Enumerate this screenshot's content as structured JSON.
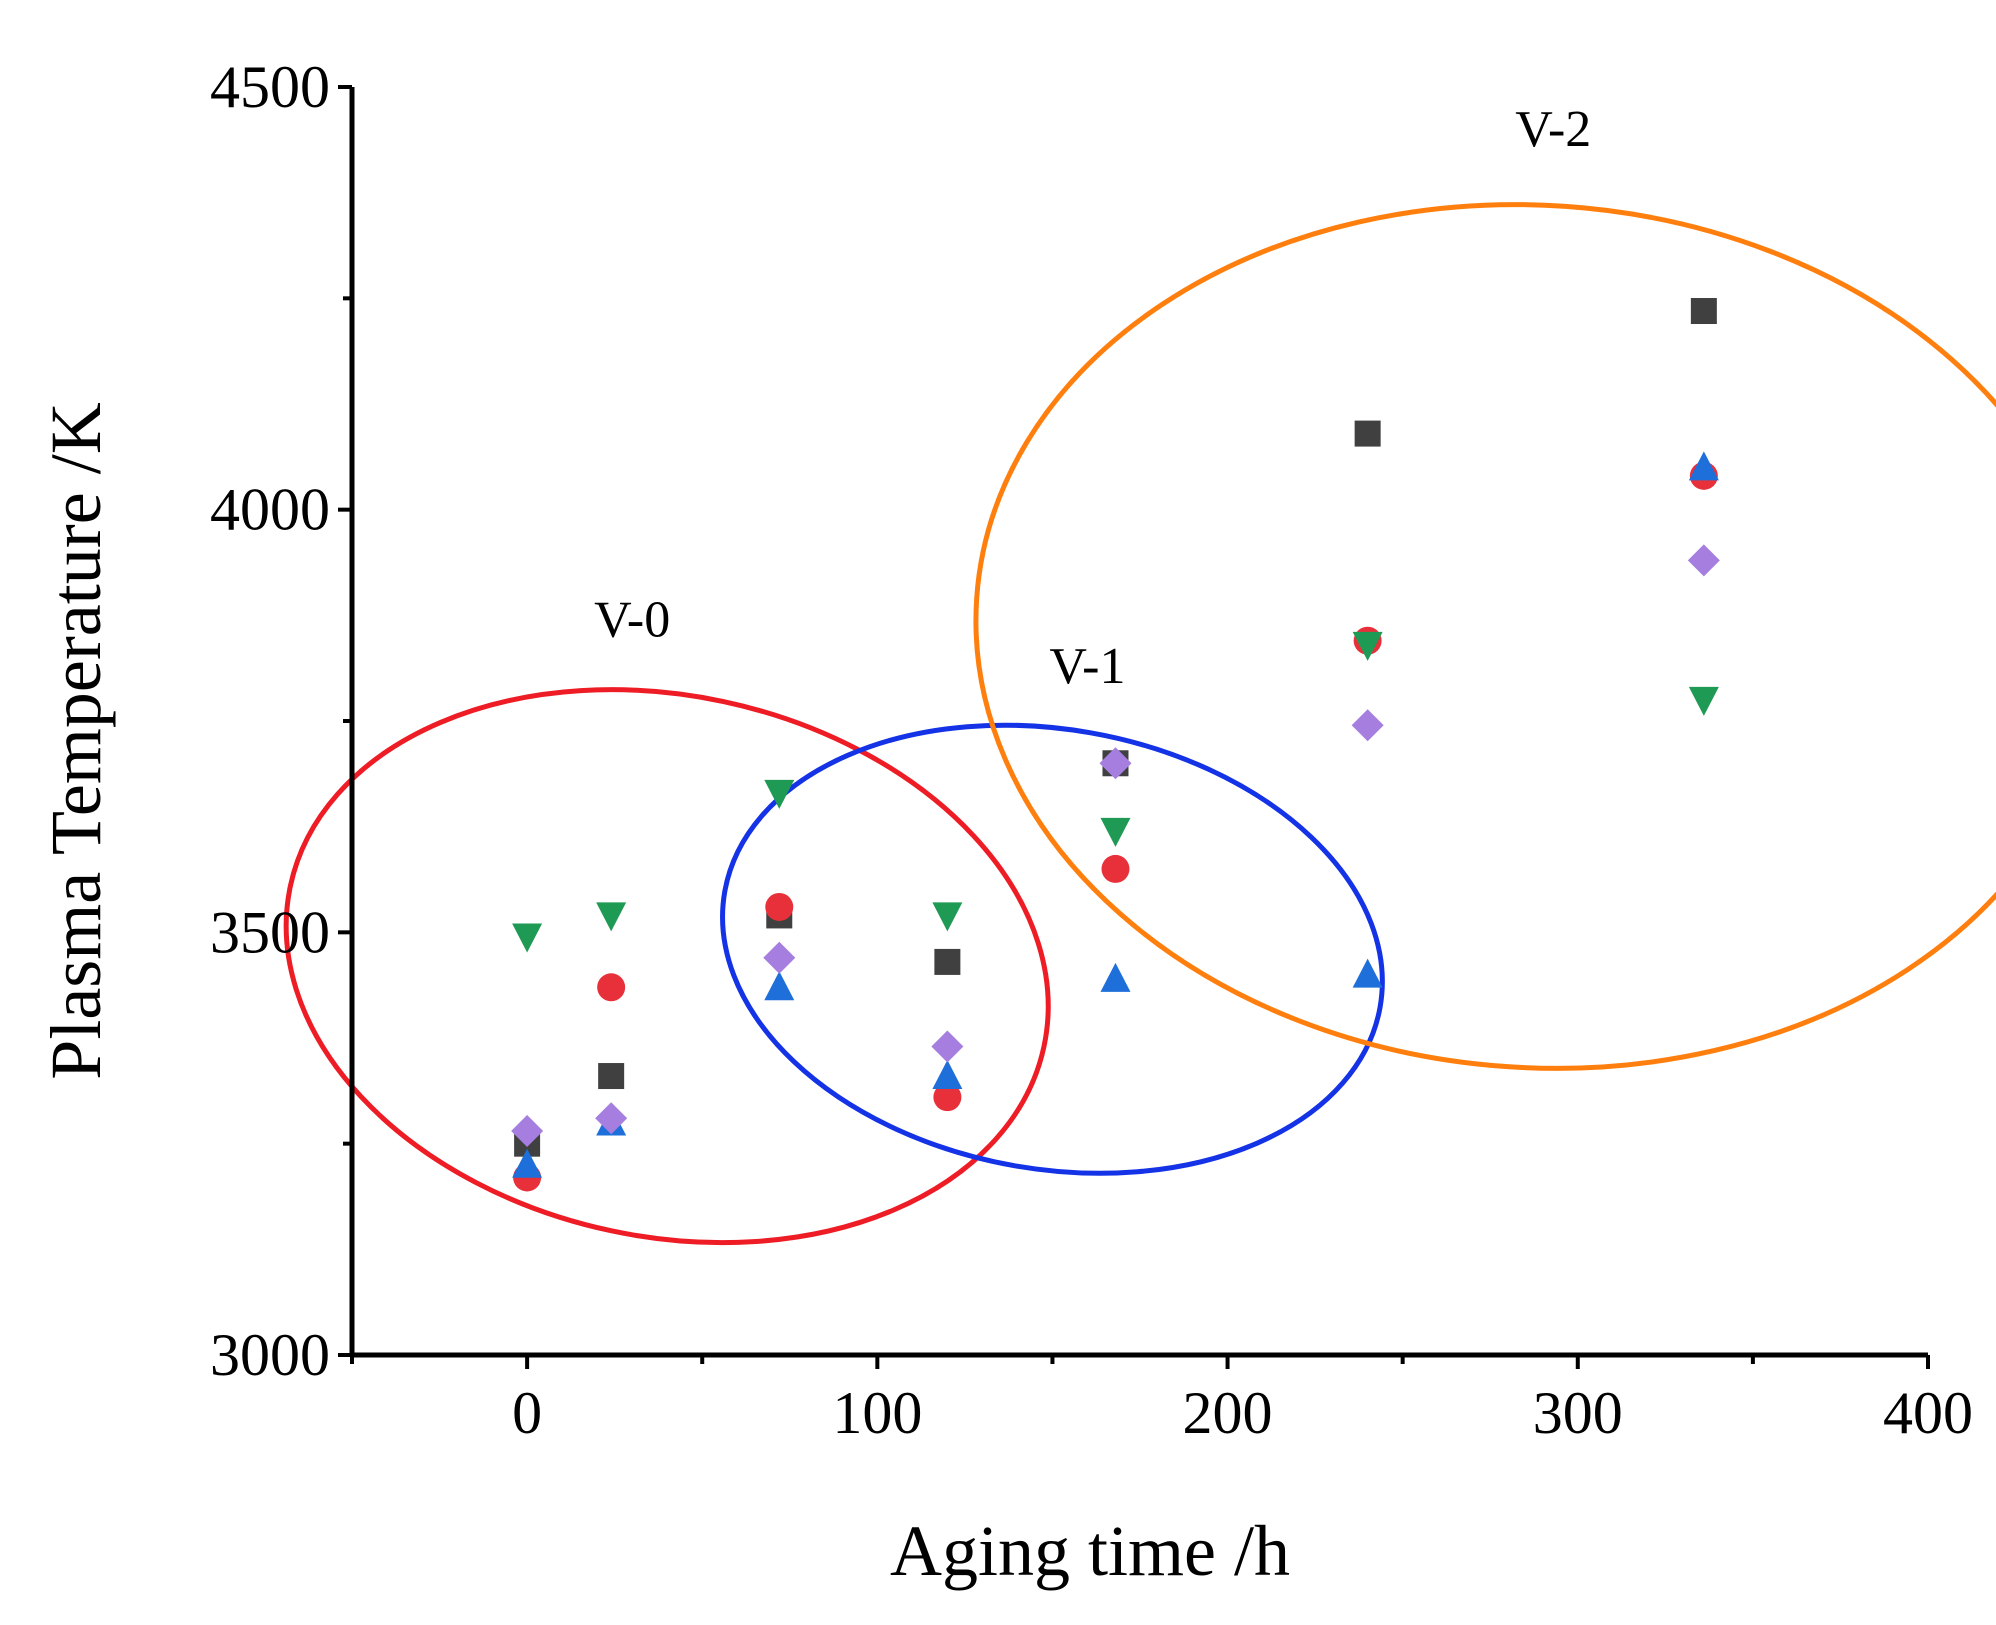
{
  "chart_data": {
    "type": "scatter",
    "title": "",
    "xlabel": "Aging time /h",
    "ylabel": "Plasma Temperature /K",
    "xlim": [
      -50,
      400
    ],
    "ylim": [
      3000,
      4500
    ],
    "x_ticks": [
      0,
      100,
      200,
      300,
      400
    ],
    "y_ticks": [
      3000,
      3500,
      4000,
      4500
    ],
    "x_tick_labels": [
      "0",
      "100",
      "200",
      "300",
      "400"
    ],
    "y_tick_labels": [
      "3000",
      "3500",
      "4000",
      "4500"
    ],
    "legend": "none",
    "series": [
      {
        "name": "square",
        "marker": "square",
        "color": "#404040",
        "x": [
          0,
          24,
          72,
          120,
          168,
          240,
          336
        ],
        "y": [
          3250,
          3330,
          3520,
          3465,
          3700,
          4090,
          4235
        ]
      },
      {
        "name": "circle",
        "marker": "circle",
        "color": "#e8303a",
        "x": [
          0,
          24,
          72,
          120,
          168,
          240,
          336
        ],
        "y": [
          3210,
          3435,
          3530,
          3305,
          3575,
          3845,
          4040
        ]
      },
      {
        "name": "triangle-up",
        "marker": "triangle-up",
        "color": "#1e6fd9",
        "x": [
          0,
          24,
          72,
          120,
          168,
          240,
          336
        ],
        "y": [
          3225,
          3275,
          3435,
          3330,
          3445,
          3450,
          4050
        ]
      },
      {
        "name": "triangle-down",
        "marker": "triangle-down",
        "color": "#1f9a55",
        "x": [
          0,
          24,
          72,
          120,
          168,
          240,
          336
        ],
        "y": [
          3495,
          3520,
          3665,
          3520,
          3620,
          3840,
          3775
        ]
      },
      {
        "name": "diamond",
        "marker": "diamond",
        "color": "#a57ee0",
        "x": [
          0,
          24,
          72,
          120,
          168,
          240,
          336
        ],
        "y": [
          3265,
          3280,
          3470,
          3365,
          3700,
          3745,
          3940
        ]
      }
    ],
    "annotations": [
      {
        "text": "V-0",
        "x": 30,
        "y": 3850,
        "color": "#ee1c25",
        "ellipse": {
          "cx": 40,
          "cy": 3460,
          "rx": 110,
          "ry": 320,
          "rotate": 12
        }
      },
      {
        "text": "V-1",
        "x": 160,
        "y": 3795,
        "color": "#1432e6",
        "ellipse": {
          "cx": 150,
          "cy": 3480,
          "rx": 95,
          "ry": 260,
          "rotate": 10
        }
      },
      {
        "text": "V-2",
        "x": 293,
        "y": 4430,
        "color": "#ff7f0e",
        "ellipse": {
          "cx": 288,
          "cy": 3850,
          "rx": 160,
          "ry": 510,
          "rotate": 4
        }
      }
    ]
  }
}
